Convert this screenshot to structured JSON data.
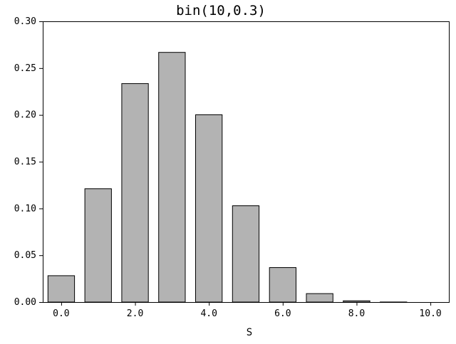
{
  "chart_data": {
    "type": "bar",
    "title": "bin(10,0.3)",
    "xlabel": "S",
    "ylabel": "",
    "x": [
      0,
      1,
      2,
      3,
      4,
      5,
      6,
      7,
      8,
      9,
      10
    ],
    "values": [
      0.0282,
      0.1211,
      0.2335,
      0.2668,
      0.2001,
      0.1029,
      0.0368,
      0.009,
      0.0014,
      0.0001,
      0.0
    ],
    "xlim": [
      -0.5,
      10.5
    ],
    "ylim": [
      0,
      0.3
    ],
    "xticks": [
      0,
      2,
      4,
      6,
      8,
      10
    ],
    "xtick_labels": [
      "0.0",
      "2.0",
      "4.0",
      "6.0",
      "8.0",
      "10.0"
    ],
    "yticks": [
      0,
      0.05,
      0.1,
      0.15,
      0.2,
      0.25,
      0.3
    ],
    "ytick_labels": [
      "0.00",
      "0.05",
      "0.10",
      "0.15",
      "0.20",
      "0.25",
      "0.30"
    ],
    "grid": false,
    "bar_color": "#b3b3b3"
  }
}
